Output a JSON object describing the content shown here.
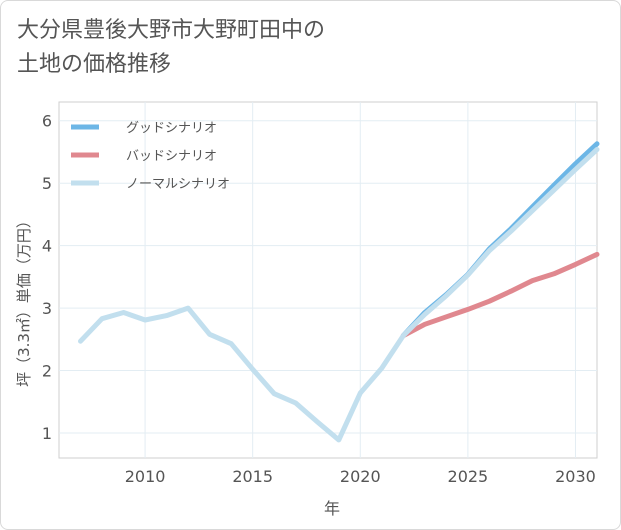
{
  "chart_data": {
    "type": "line",
    "title_lines": [
      "大分県豊後大野市大野町田中の",
      "土地の価格推移"
    ],
    "xlabel": "年",
    "ylabel": "坪（3.3㎡）単価（万円）",
    "xlim": [
      2006,
      2031
    ],
    "ylim": [
      0.6,
      6.3
    ],
    "xticks": [
      2010,
      2015,
      2020,
      2025,
      2030
    ],
    "yticks": [
      1,
      2,
      3,
      4,
      5,
      6
    ],
    "grid": true,
    "legend_position": "top-left",
    "series": [
      {
        "name": "グッドシナリオ",
        "color": "#6cb6e6",
        "x": [
          2022,
          2023,
          2024,
          2025,
          2026,
          2027,
          2028,
          2029,
          2030,
          2031
        ],
        "values": [
          2.56,
          2.93,
          3.22,
          3.54,
          3.95,
          4.27,
          4.62,
          4.97,
          5.31,
          5.63
        ]
      },
      {
        "name": "バッドシナリオ",
        "color": "#e0888f",
        "x": [
          2022,
          2023,
          2024,
          2025,
          2026,
          2027,
          2028,
          2029,
          2030,
          2031
        ],
        "values": [
          2.56,
          2.74,
          2.86,
          2.98,
          3.11,
          3.27,
          3.44,
          3.55,
          3.7,
          3.86
        ]
      },
      {
        "name": "ノーマルシナリオ",
        "color": "#c2dfee",
        "x": [
          2007,
          2008,
          2009,
          2010,
          2011,
          2012,
          2013,
          2014,
          2015,
          2016,
          2017,
          2018,
          2019,
          2020,
          2021,
          2022,
          2023,
          2024,
          2025,
          2026,
          2027,
          2028,
          2029,
          2030,
          2031
        ],
        "values": [
          2.47,
          2.83,
          2.93,
          2.81,
          2.88,
          3.0,
          2.58,
          2.43,
          2.02,
          1.63,
          1.48,
          1.18,
          0.89,
          1.64,
          2.04,
          2.56,
          2.9,
          3.2,
          3.53,
          3.92,
          4.23,
          4.56,
          4.89,
          5.22,
          5.54
        ]
      }
    ]
  }
}
